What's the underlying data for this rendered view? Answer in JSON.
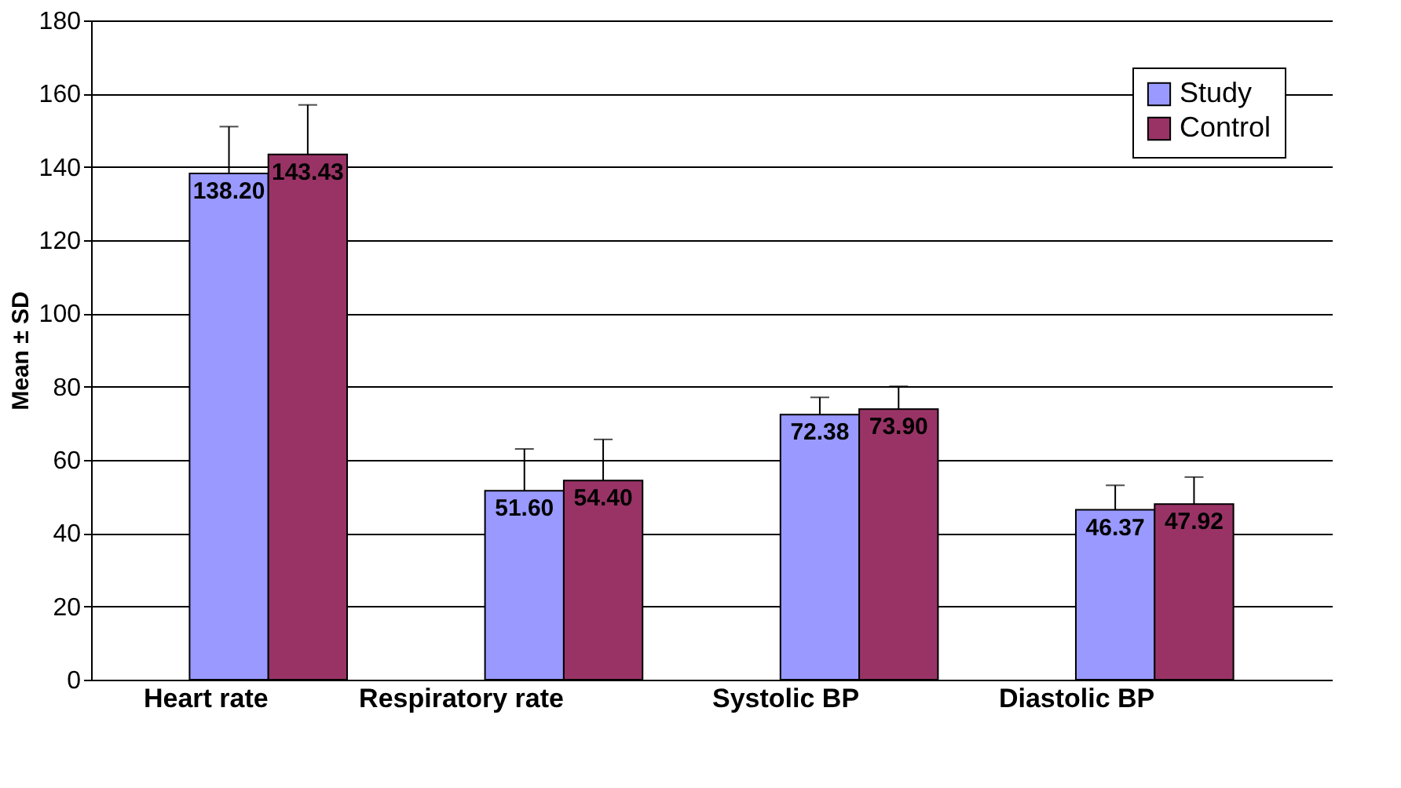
{
  "chart_data": {
    "type": "bar",
    "ylabel": "Mean ± SD",
    "categories": [
      "Heart rate",
      "Respiratory rate",
      "Systolic BP",
      "Diastolic BP"
    ],
    "series": [
      {
        "name": "Study",
        "color": "#9999ff",
        "values": [
          138.2,
          51.6,
          72.38,
          46.37
        ],
        "value_labels": [
          "138.20",
          "51.60",
          "72.38",
          "46.37"
        ],
        "errors": [
          12.8,
          11.4,
          4.7,
          6.7
        ]
      },
      {
        "name": "Control",
        "color": "#993366",
        "values": [
          143.43,
          54.4,
          73.9,
          47.92
        ],
        "value_labels": [
          "143.43",
          "54.40",
          "73.90",
          "47.92"
        ],
        "errors": [
          13.5,
          11.2,
          6.2,
          7.4
        ]
      }
    ],
    "ylim": [
      0,
      180
    ],
    "yticks": [
      0,
      20,
      40,
      60,
      80,
      100,
      120,
      140,
      160,
      180
    ],
    "grid": "y",
    "legend": "top right"
  }
}
